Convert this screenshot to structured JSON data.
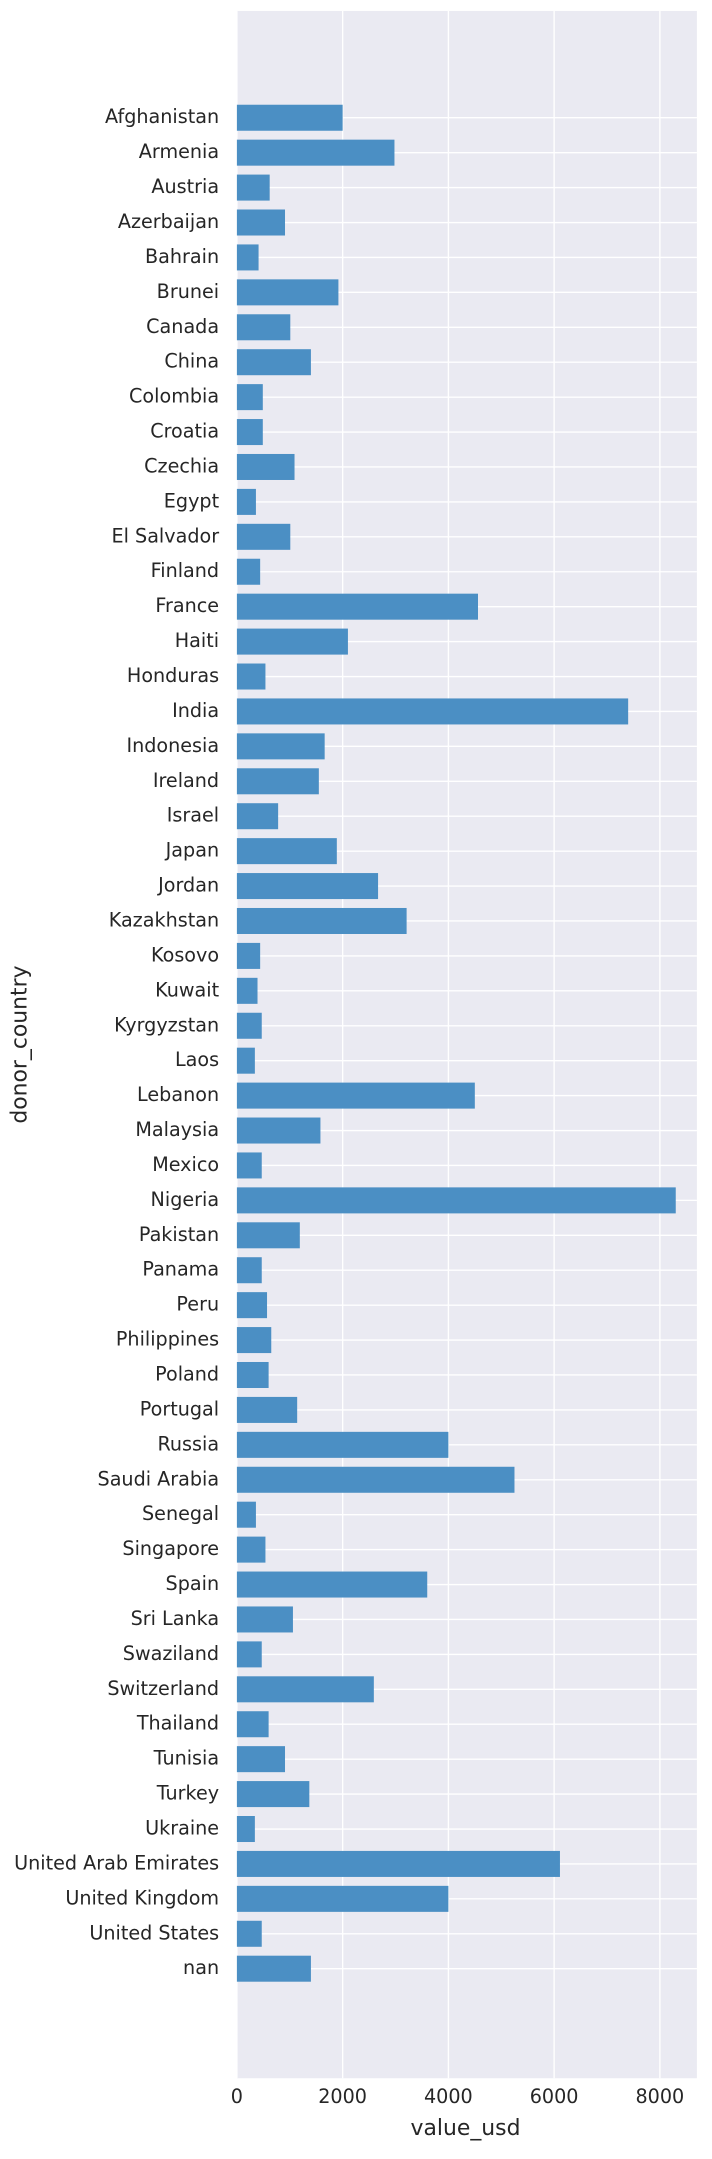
{
  "chart_data": {
    "type": "barh",
    "categories": [
      "Afghanistan",
      "Armenia",
      "Austria",
      "Azerbaijan",
      "Bahrain",
      "Brunei",
      "Canada",
      "China",
      "Colombia",
      "Croatia",
      "Czechia",
      "Egypt",
      "El Salvador",
      "Finland",
      "France",
      "Haiti",
      "Honduras",
      "India",
      "Indonesia",
      "Ireland",
      "Israel",
      "Japan",
      "Jordan",
      "Kazakhstan",
      "Kosovo",
      "Kuwait",
      "Kyrgyzstan",
      "Laos",
      "Lebanon",
      "Malaysia",
      "Mexico",
      "Nigeria",
      "Pakistan",
      "Panama",
      "Peru",
      "Philippines",
      "Poland",
      "Portugal",
      "Russia",
      "Saudi Arabia",
      "Senegal",
      "Singapore",
      "Spain",
      "Sri Lanka",
      "Swaziland",
      "Switzerland",
      "Thailand",
      "Tunisia",
      "Turkey",
      "Ukraine",
      "United Arab Emirates",
      "United Kingdom",
      "United States",
      "nan"
    ],
    "values": [
      2000,
      2980,
      620,
      910,
      410,
      1920,
      1010,
      1400,
      490,
      490,
      1090,
      360,
      1010,
      440,
      4560,
      2100,
      540,
      7400,
      1660,
      1550,
      780,
      1890,
      2670,
      3210,
      440,
      390,
      470,
      340,
      4500,
      1580,
      470,
      8300,
      1190,
      470,
      570,
      650,
      600,
      1140,
      4000,
      5250,
      360,
      540,
      3600,
      1060,
      470,
      2590,
      600,
      910,
      1370,
      340,
      6110,
      4000,
      470,
      1400
    ],
    "color": "#4b8fc4",
    "x_label": "value_usd",
    "y_label": "donor_country",
    "xlim": [
      0,
      8700
    ],
    "xticks": [
      0,
      2000,
      4000,
      6000,
      8000
    ],
    "grid": true
  }
}
